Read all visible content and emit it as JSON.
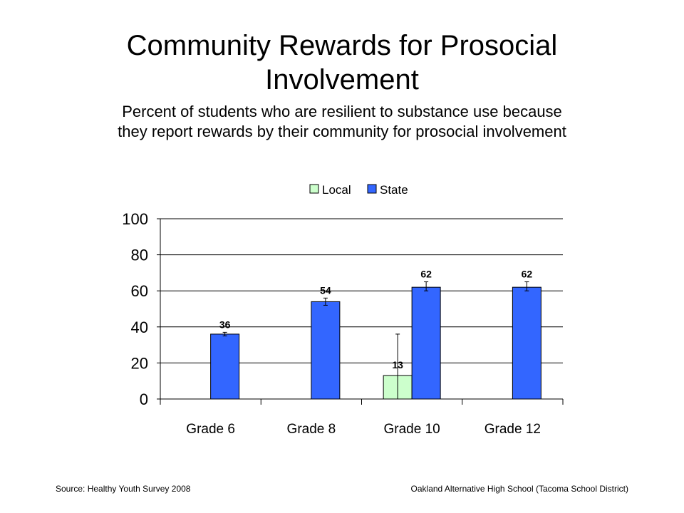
{
  "slide": {
    "title_line1": "Community Rewards for Prosocial",
    "title_line2": "Involvement",
    "subtitle_line1": "Percent of students who are resilient to substance use because",
    "subtitle_line2": "they report rewards by their community for prosocial involvement",
    "source": "Source: Healthy Youth Survey 2008",
    "school": "Oakland Alternative High School (Tacoma School District)"
  },
  "chart_data": {
    "type": "bar",
    "categories": [
      "Grade 6",
      "Grade 8",
      "Grade 10",
      "Grade 12"
    ],
    "series": [
      {
        "name": "Local",
        "color": "#ccffcc",
        "values": [
          null,
          null,
          13,
          null
        ],
        "labels": [
          "",
          "",
          "13",
          ""
        ],
        "error_low": [
          null,
          null,
          0,
          null
        ],
        "error_high": [
          null,
          null,
          36,
          null
        ]
      },
      {
        "name": "State",
        "color": "#3366ff",
        "values": [
          36,
          54,
          62,
          62
        ],
        "labels": [
          "36",
          "54",
          "62",
          "62"
        ],
        "error_low": [
          35,
          52,
          60,
          60
        ],
        "error_high": [
          37,
          56,
          65,
          65
        ]
      }
    ],
    "yticks": [
      "0",
      "20",
      "40",
      "60",
      "80",
      "100"
    ],
    "ylim": [
      0,
      100
    ],
    "grid": true,
    "legend_position": "top"
  }
}
